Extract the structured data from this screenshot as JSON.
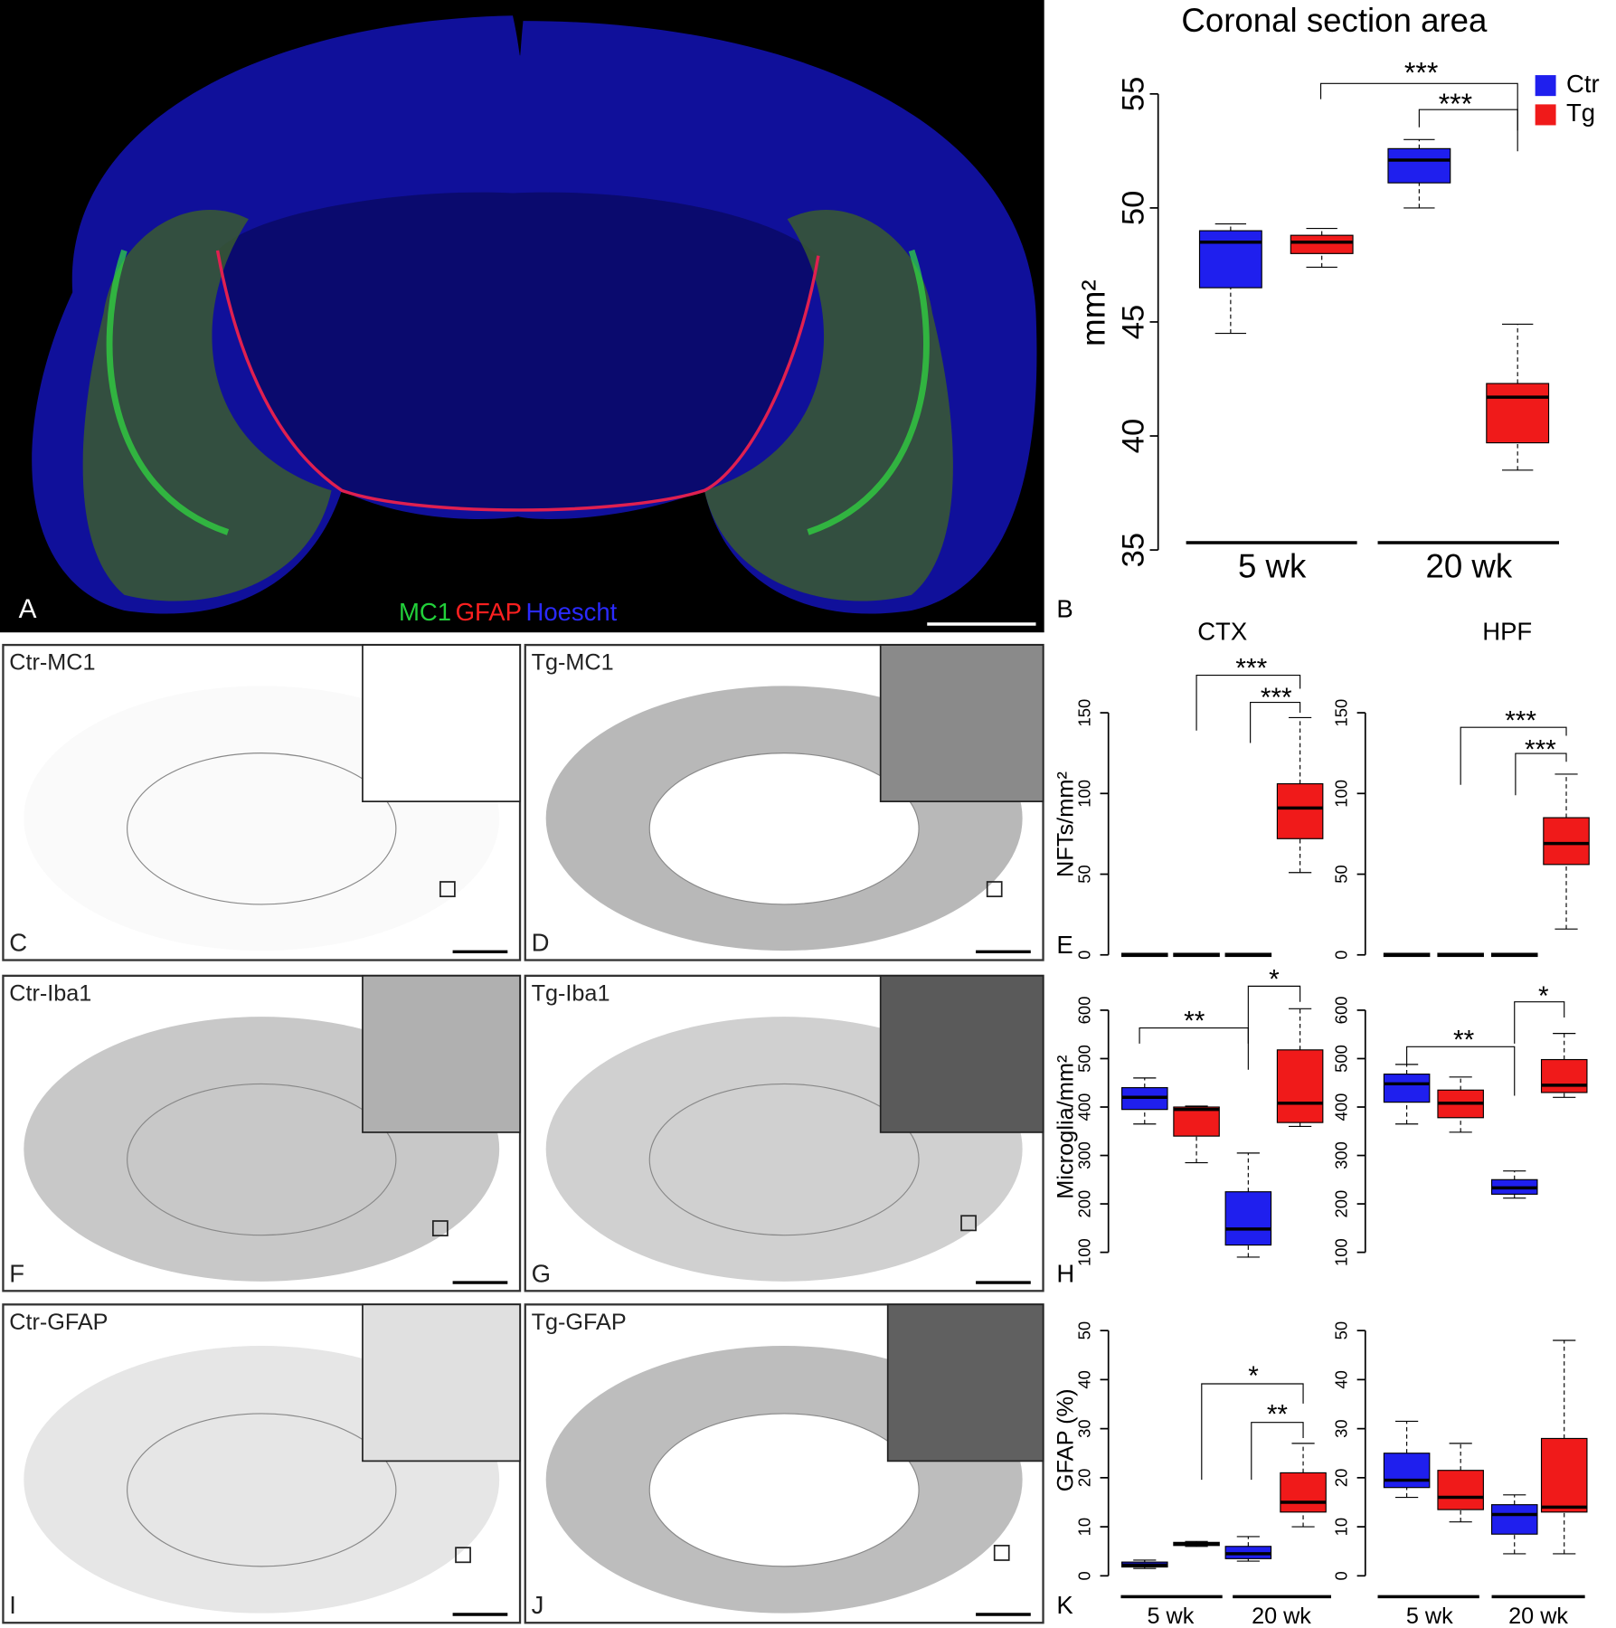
{
  "panel_a": {
    "letter": "A",
    "stains": [
      {
        "text": "MC1",
        "color": "#22d03a"
      },
      {
        "text": "GFAP",
        "color": "#ff2020"
      },
      {
        "text": "Hoescht",
        "color": "#2a2aff"
      }
    ]
  },
  "image_panels": [
    {
      "label": "Ctr-MC1",
      "letter": "C"
    },
    {
      "label": "Tg-MC1",
      "letter": "D"
    },
    {
      "label": "Ctr-Iba1",
      "letter": "F"
    },
    {
      "label": "Tg-Iba1",
      "letter": "G"
    },
    {
      "label": "Ctr-GFAP",
      "letter": "I"
    },
    {
      "label": "Tg-GFAP",
      "letter": "J"
    }
  ],
  "chart_data": [
    {
      "type": "box",
      "letter": "B",
      "title": "Coronal section area",
      "ylabel": "mm²",
      "ylim": [
        35,
        55
      ],
      "yticks": [
        35,
        40,
        45,
        50,
        55
      ],
      "categories": [
        "5 wk",
        "20 wk"
      ],
      "legend": "top-right",
      "annotations": [
        "***",
        "***"
      ],
      "series": [
        {
          "name": "Ctr",
          "color": "#1f1fee",
          "values": [
            {
              "min": 44.5,
              "q1": 46.5,
              "median": 48.5,
              "q3": 49,
              "max": 49.3
            },
            {
              "min": 50,
              "q1": 51.1,
              "median": 52.1,
              "q3": 52.6,
              "max": 53
            }
          ]
        },
        {
          "name": "Tg",
          "color": "#f01a1a",
          "values": [
            {
              "min": 47.4,
              "q1": 48,
              "median": 48.5,
              "q3": 48.8,
              "max": 49.1
            },
            {
              "min": 38.5,
              "q1": 39.7,
              "median": 41.7,
              "q3": 42.3,
              "max": 44.9
            }
          ]
        }
      ]
    },
    {
      "type": "box",
      "letter": "E",
      "title": "CTX",
      "ylabel": "NFTs/mm²",
      "ylim": [
        0,
        150
      ],
      "yticks": [
        0,
        50,
        100,
        150
      ],
      "annotations": [
        "***",
        "***"
      ],
      "series": [
        {
          "color": "#1f1fee",
          "values": [
            {
              "min": 0,
              "q1": 0,
              "median": 0,
              "q3": 0,
              "max": 0
            },
            {
              "min": 0,
              "q1": 0,
              "median": 0,
              "q3": 0,
              "max": 0
            }
          ]
        },
        {
          "color": "#f01a1a",
          "values": [
            {
              "min": 0,
              "q1": 0,
              "median": 0,
              "q3": 0,
              "max": 0
            },
            {
              "min": 51,
              "q1": 72,
              "median": 91,
              "q3": 106,
              "max": 147
            }
          ]
        }
      ]
    },
    {
      "type": "box",
      "title": "HPF",
      "ylim": [
        0,
        150
      ],
      "yticks": [
        0,
        50,
        100,
        150
      ],
      "annotations": [
        "***",
        "***"
      ],
      "series": [
        {
          "color": "#1f1fee",
          "values": [
            {
              "min": 0,
              "q1": 0,
              "median": 0,
              "q3": 0,
              "max": 0
            },
            {
              "min": 0,
              "q1": 0,
              "median": 0,
              "q3": 0,
              "max": 0
            }
          ]
        },
        {
          "color": "#f01a1a",
          "values": [
            {
              "min": 0,
              "q1": 0,
              "median": 0,
              "q3": 0,
              "max": 0
            },
            {
              "min": 16,
              "q1": 56,
              "median": 69,
              "q3": 85,
              "max": 112
            }
          ]
        }
      ]
    },
    {
      "type": "box",
      "letter": "H",
      "ylabel": "Microglia/mm²",
      "ylim": [
        100,
        600
      ],
      "yticks": [
        100,
        200,
        300,
        400,
        500,
        600
      ],
      "annotations": [
        "**",
        "*"
      ],
      "series": [
        {
          "color": "#1f1fee",
          "values": [
            {
              "min": 365,
              "q1": 395,
              "median": 420,
              "q3": 440,
              "max": 460
            },
            {
              "min": 90,
              "q1": 115,
              "median": 148,
              "q3": 225,
              "max": 305
            }
          ]
        },
        {
          "color": "#f01a1a",
          "values": [
            {
              "min": 285,
              "q1": 340,
              "median": 395,
              "q3": 400,
              "max": 402
            },
            {
              "min": 360,
              "q1": 368,
              "median": 408,
              "q3": 518,
              "max": 603
            }
          ]
        }
      ]
    },
    {
      "type": "box",
      "ylim": [
        100,
        600
      ],
      "yticks": [
        100,
        200,
        300,
        400,
        500,
        600
      ],
      "annotations": [
        "**",
        "*"
      ],
      "series": [
        {
          "color": "#1f1fee",
          "values": [
            {
              "min": 365,
              "q1": 410,
              "median": 448,
              "q3": 468,
              "max": 488
            },
            {
              "min": 212,
              "q1": 220,
              "median": 233,
              "q3": 250,
              "max": 268
            }
          ]
        },
        {
          "color": "#f01a1a",
          "values": [
            {
              "min": 348,
              "q1": 378,
              "median": 408,
              "q3": 435,
              "max": 462
            },
            {
              "min": 420,
              "q1": 430,
              "median": 445,
              "q3": 498,
              "max": 552
            }
          ]
        }
      ]
    },
    {
      "type": "box",
      "letter": "K",
      "ylabel": "GFAP (%)",
      "ylim": [
        0,
        50
      ],
      "yticks": [
        0,
        10,
        20,
        30,
        40,
        50
      ],
      "categories": [
        "5 wk",
        "20 wk"
      ],
      "annotations": [
        "*",
        "**"
      ],
      "series": [
        {
          "color": "#1f1fee",
          "values": [
            {
              "min": 1.5,
              "q1": 1.8,
              "median": 2.2,
              "q3": 2.8,
              "max": 3.2
            },
            {
              "min": 3,
              "q1": 3.5,
              "median": 4.5,
              "q3": 6,
              "max": 8
            }
          ]
        },
        {
          "color": "#f01a1a",
          "values": [
            {
              "min": 6,
              "q1": 6.2,
              "median": 6.5,
              "q3": 6.8,
              "max": 7
            },
            {
              "min": 10,
              "q1": 13,
              "median": 15,
              "q3": 21,
              "max": 27
            }
          ]
        }
      ]
    },
    {
      "type": "box",
      "ylim": [
        0,
        50
      ],
      "yticks": [
        0,
        10,
        20,
        30,
        40,
        50
      ],
      "categories": [
        "5 wk",
        "20 wk"
      ],
      "series": [
        {
          "color": "#1f1fee",
          "values": [
            {
              "min": 16,
              "q1": 18,
              "median": 19.5,
              "q3": 25,
              "max": 31.5
            },
            {
              "min": 4.5,
              "q1": 8.5,
              "median": 12.5,
              "q3": 14.5,
              "max": 16.5
            }
          ]
        },
        {
          "color": "#f01a1a",
          "values": [
            {
              "min": 11,
              "q1": 13.5,
              "median": 16,
              "q3": 21.5,
              "max": 27
            },
            {
              "min": 4.5,
              "q1": 13,
              "median": 14,
              "q3": 28,
              "max": 48
            }
          ]
        }
      ]
    }
  ]
}
